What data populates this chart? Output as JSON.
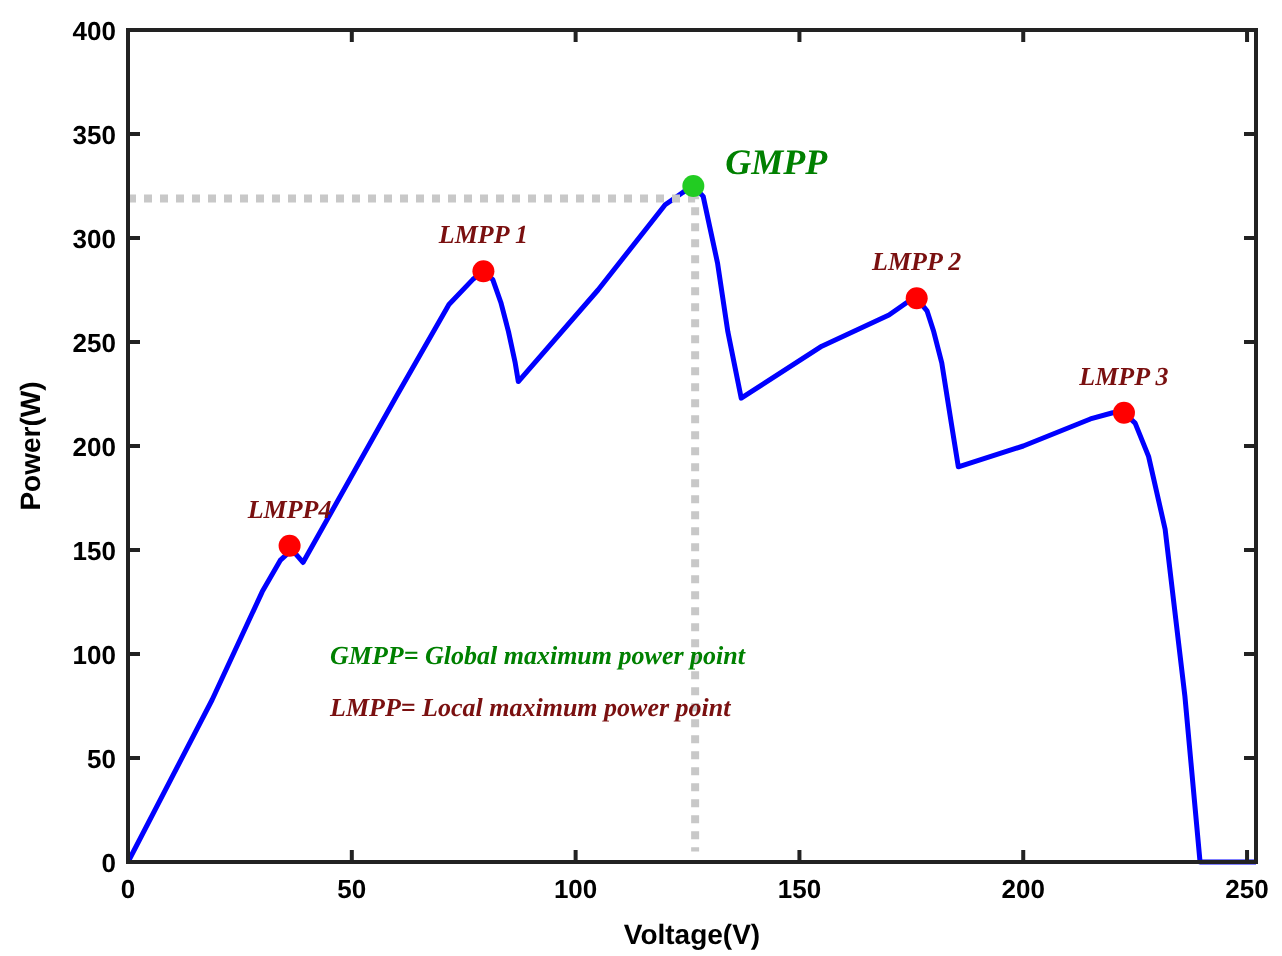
{
  "chart_data": {
    "type": "line",
    "xlabel": "Voltage(V)",
    "ylabel": "Power(W)",
    "xlim": [
      0,
      252
    ],
    "ylim": [
      0,
      400
    ],
    "xticks": [
      0,
      50,
      100,
      150,
      200,
      250
    ],
    "yticks": [
      0,
      50,
      100,
      150,
      200,
      250,
      300,
      350,
      400
    ],
    "grid": false,
    "series": [
      {
        "color": "#0000ff",
        "line_style": "solid",
        "marker": "none",
        "x": [
          0,
          18.8,
          30,
          34,
          36,
          37.5,
          39.1,
          60,
          71.7,
          77,
          79.4,
          81.5,
          83.3,
          85,
          86.5,
          87.2,
          105,
          120,
          124,
          126.3,
          128.5,
          130,
          131.7,
          134,
          137,
          155,
          170,
          174,
          176.2,
          178.5,
          180,
          181.8,
          184,
          185.5,
          200,
          215,
          220,
          222.5,
          225,
          228,
          231.7,
          236.1,
          239.5,
          252
        ],
        "values": [
          0,
          78,
          130,
          145,
          149,
          148,
          144,
          224,
          268,
          280,
          284,
          280,
          269,
          255,
          240,
          231,
          275,
          316,
          322,
          325,
          320,
          305,
          288,
          255,
          223,
          248,
          263,
          269,
          271,
          265,
          255,
          240,
          210,
          190,
          200,
          213,
          216,
          216,
          211,
          195,
          160,
          80,
          0,
          0
        ]
      },
      {
        "type": "line",
        "color": "#c8c8c8",
        "line_style": "dotted",
        "marker": "none",
        "x": [
          0,
          126.7,
          126.7
        ],
        "values": [
          319,
          319,
          5
        ]
      },
      {
        "type": "scatter",
        "color": "#22cc22",
        "marker": "circle",
        "x": [
          126.3
        ],
        "values": [
          325
        ]
      },
      {
        "type": "scatter",
        "color": "#ff0000",
        "marker": "circle",
        "x": [
          36.1,
          79.4,
          176.2,
          222.5
        ],
        "values": [
          152,
          284,
          271,
          216
        ]
      }
    ],
    "annotations": [
      {
        "text": "GMPP",
        "x": 126.3,
        "y": 325
      },
      {
        "text": "LMPP 1",
        "x": 79.4,
        "y": 284
      },
      {
        "text": "LMPP 2",
        "x": 176.2,
        "y": 271
      },
      {
        "text": "LMPP 3",
        "x": 222.5,
        "y": 216
      },
      {
        "text": "LMPP4",
        "x": 36.1,
        "y": 152
      },
      "GMPP= Global maximum power point",
      "LMPP= Local maximum power point"
    ]
  }
}
